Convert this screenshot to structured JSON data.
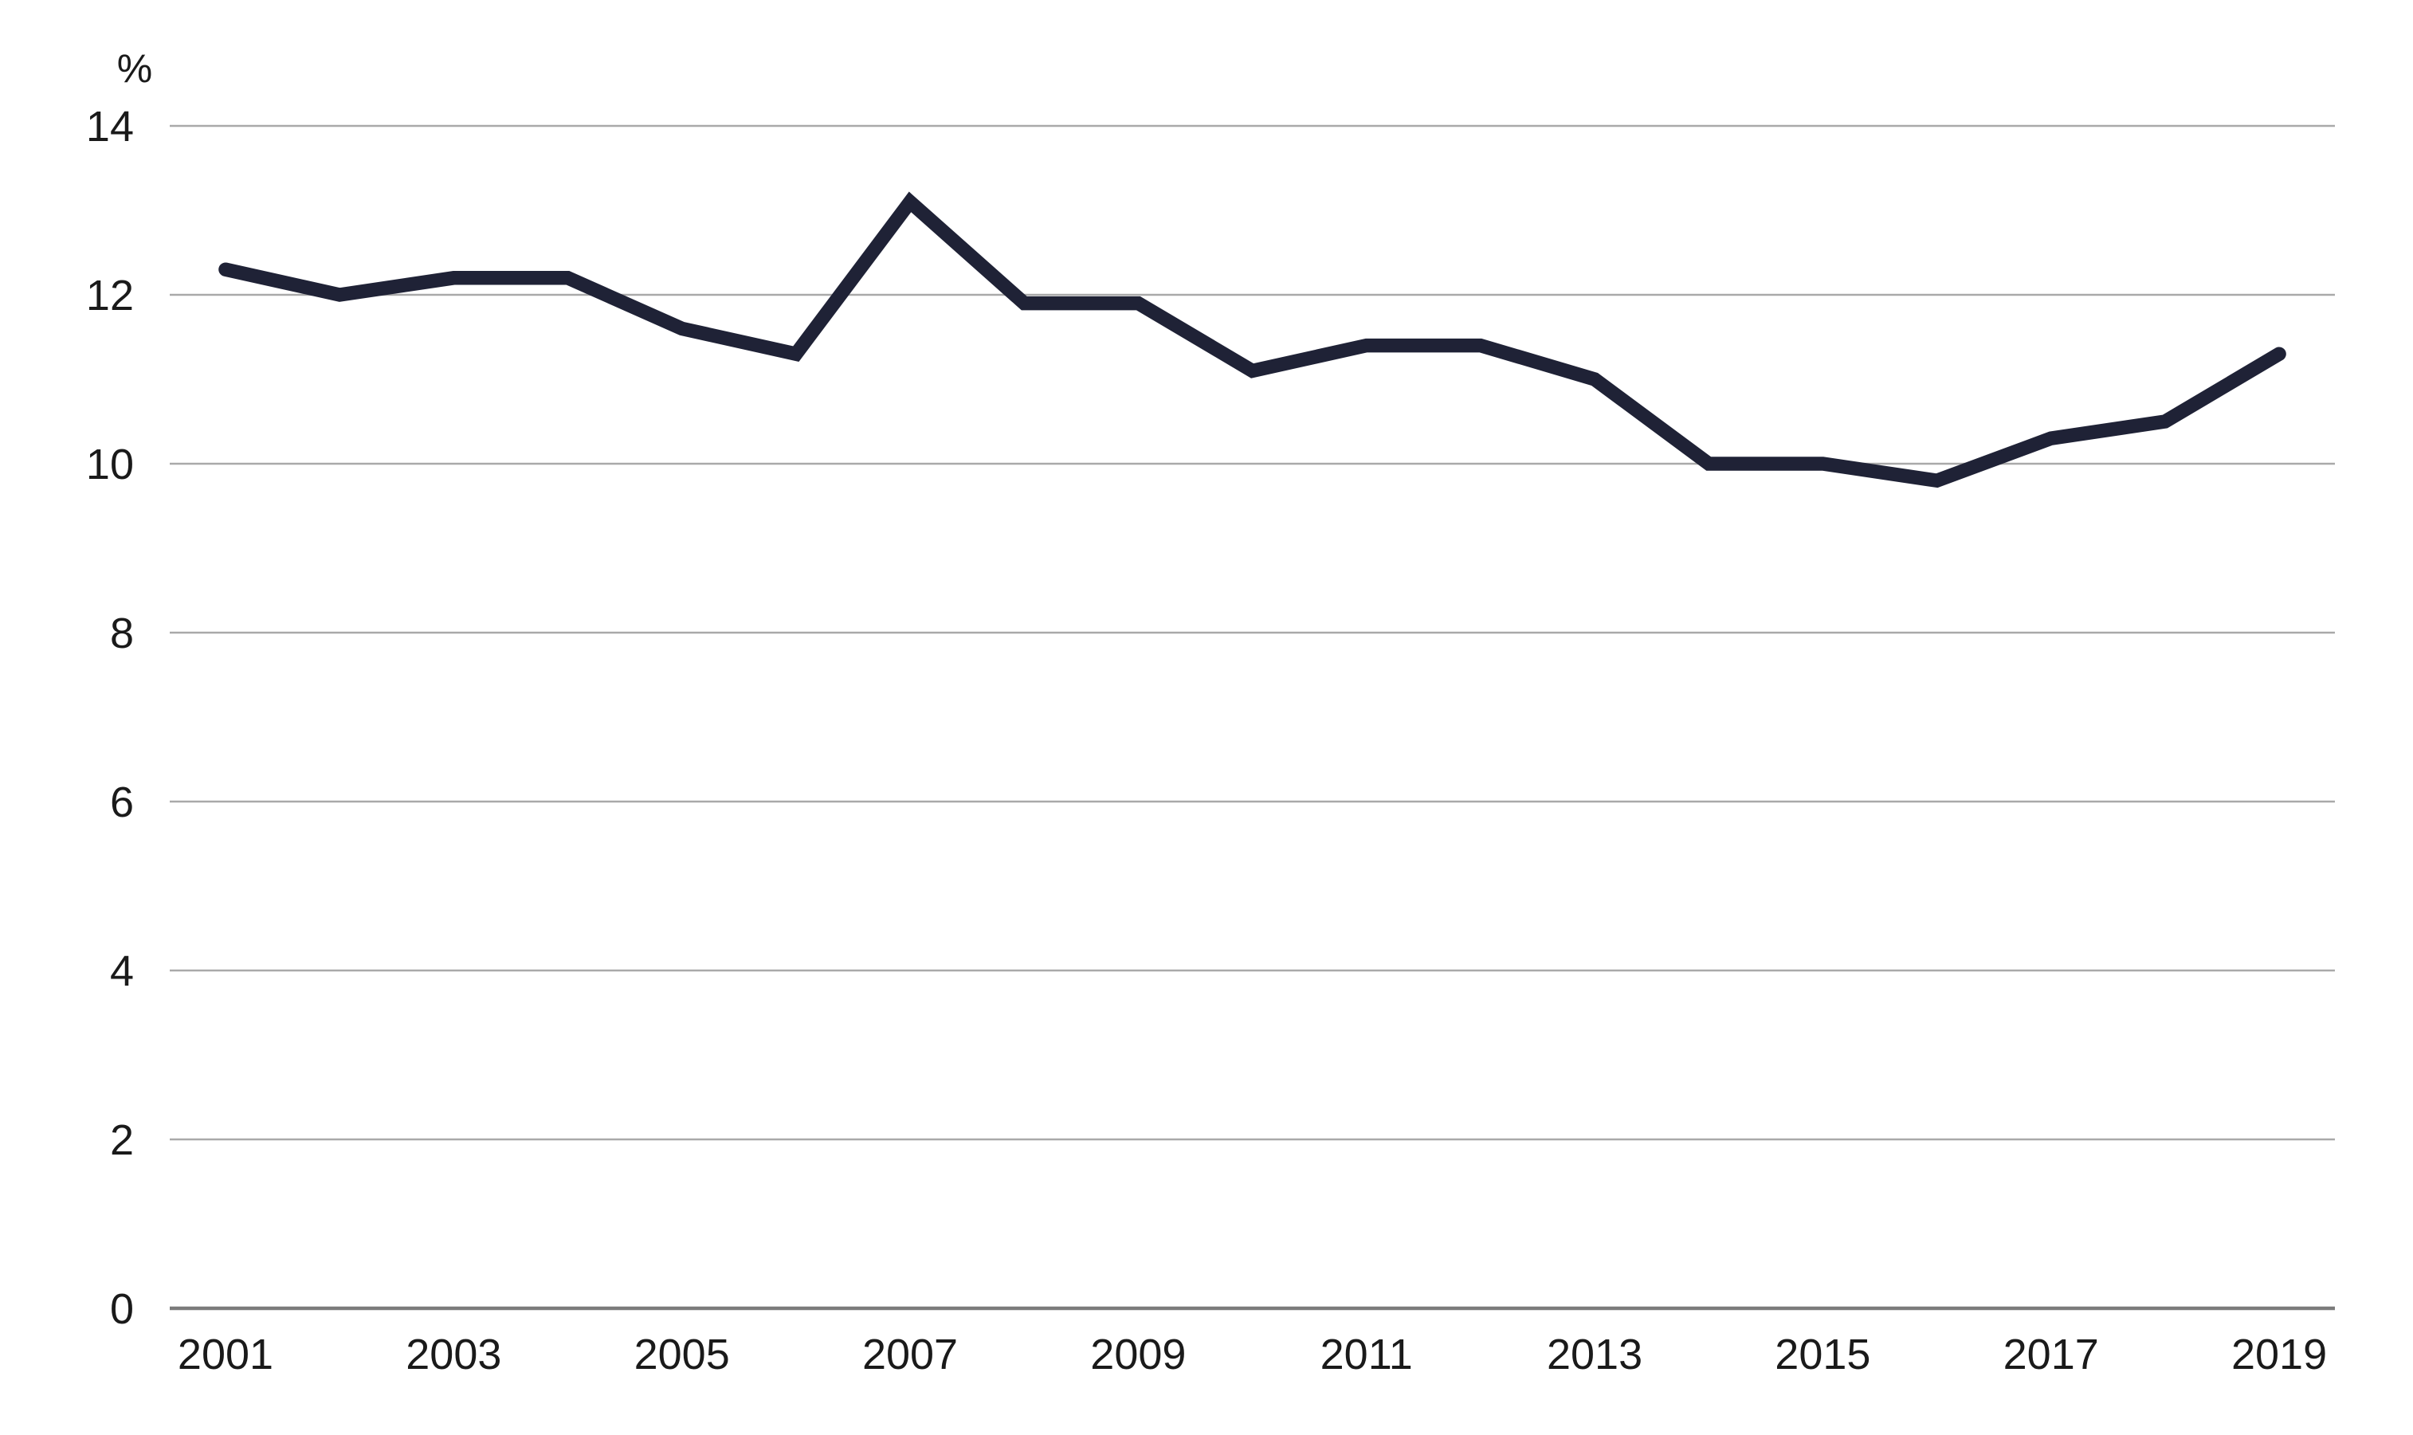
{
  "chart_data": {
    "type": "line",
    "title": "",
    "unit_label": "%",
    "xlabel": "",
    "ylabel": "%",
    "x": [
      2001,
      2002,
      2003,
      2004,
      2005,
      2006,
      2007,
      2008,
      2009,
      2010,
      2011,
      2012,
      2013,
      2014,
      2015,
      2016,
      2017,
      2018,
      2019
    ],
    "series": [
      {
        "name": "percentage",
        "values": [
          12.3,
          12.0,
          12.2,
          12.2,
          11.6,
          11.3,
          13.1,
          11.9,
          11.9,
          11.1,
          11.4,
          11.4,
          11.0,
          10.0,
          10.0,
          9.8,
          10.3,
          10.5,
          11.3
        ]
      }
    ],
    "x_tick_labels": [
      "2001",
      "2003",
      "2005",
      "2007",
      "2009",
      "2011",
      "2013",
      "2015",
      "2017",
      "2019"
    ],
    "x_tick_step": 2,
    "y_ticks": [
      0,
      2,
      4,
      6,
      8,
      10,
      12,
      14
    ],
    "y_tick_labels": [
      "0",
      "2",
      "4",
      "6",
      "8",
      "10",
      "12",
      "14"
    ],
    "ylim": [
      0,
      14
    ],
    "grid": "horizontal-only",
    "legend_position": "none",
    "colors": {
      "line": "#1f2236",
      "gridline": "#a9a9a9",
      "zero_axis_line": "#7b7b7b",
      "text": "#1a1a1a",
      "background": "#ffffff"
    }
  }
}
